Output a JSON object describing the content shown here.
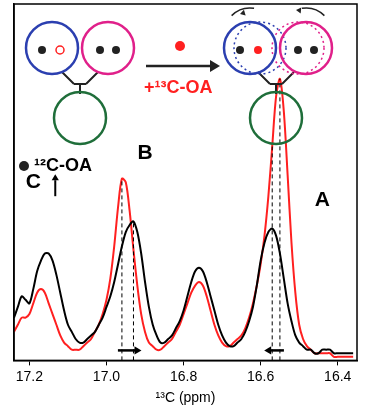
{
  "chart_data": {
    "type": "line",
    "x_label": "¹³C (ppm)",
    "x": [
      17.24,
      17.23,
      17.22,
      17.21,
      17.2,
      17.19,
      17.18,
      17.17,
      17.16,
      17.15,
      17.14,
      17.13,
      17.12,
      17.11,
      17.1,
      17.09,
      17.08,
      17.07,
      17.06,
      17.05,
      17.04,
      17.03,
      17.02,
      17.01,
      17,
      16.99,
      16.98,
      16.97,
      16.96,
      16.95,
      16.94,
      16.93,
      16.92,
      16.91,
      16.9,
      16.89,
      16.88,
      16.87,
      16.86,
      16.85,
      16.84,
      16.83,
      16.82,
      16.81,
      16.8,
      16.79,
      16.78,
      16.77,
      16.76,
      16.75,
      16.74,
      16.73,
      16.72,
      16.71,
      16.7,
      16.69,
      16.68,
      16.67,
      16.66,
      16.65,
      16.64,
      16.63,
      16.62,
      16.61,
      16.6,
      16.59,
      16.58,
      16.57,
      16.56,
      16.55,
      16.54,
      16.53,
      16.52,
      16.51,
      16.5,
      16.49,
      16.48,
      16.47,
      16.46,
      16.45,
      16.44,
      16.43,
      16.42,
      16.41,
      16.4,
      16.39,
      16.38,
      16.37,
      16.36
    ],
    "series": [
      {
        "name": "¹²C-OA",
        "color": "#000000",
        "values": [
          0.12,
          0.15,
          0.18,
          0.17,
          0.16,
          0.2,
          0.25,
          0.28,
          0.3,
          0.3,
          0.28,
          0.24,
          0.19,
          0.14,
          0.1,
          0.08,
          0.06,
          0.05,
          0.05,
          0.06,
          0.07,
          0.08,
          0.1,
          0.12,
          0.15,
          0.18,
          0.22,
          0.27,
          0.32,
          0.36,
          0.38,
          0.39,
          0.36,
          0.3,
          0.22,
          0.15,
          0.1,
          0.07,
          0.05,
          0.05,
          0.06,
          0.07,
          0.09,
          0.11,
          0.14,
          0.18,
          0.22,
          0.25,
          0.26,
          0.25,
          0.22,
          0.18,
          0.14,
          0.1,
          0.07,
          0.05,
          0.04,
          0.04,
          0.05,
          0.06,
          0.08,
          0.11,
          0.15,
          0.21,
          0.28,
          0.33,
          0.36,
          0.37,
          0.35,
          0.3,
          0.23,
          0.16,
          0.11,
          0.07,
          0.05,
          0.04,
          0.03,
          0.03,
          0.02,
          0.02,
          0.03,
          0.03,
          0.03,
          0.02,
          0.02,
          0.02,
          0.02,
          0.02,
          0.02
        ]
      },
      {
        "name": "+¹³C-OA",
        "color": "#ff2020",
        "values": [
          0.08,
          0.1,
          0.12,
          0.12,
          0.13,
          0.16,
          0.19,
          0.2,
          0.19,
          0.16,
          0.13,
          0.1,
          0.07,
          0.05,
          0.04,
          0.03,
          0.03,
          0.03,
          0.04,
          0.05,
          0.06,
          0.08,
          0.1,
          0.13,
          0.17,
          0.23,
          0.32,
          0.43,
          0.51,
          0.5,
          0.42,
          0.31,
          0.21,
          0.13,
          0.08,
          0.05,
          0.04,
          0.03,
          0.03,
          0.04,
          0.05,
          0.06,
          0.08,
          0.1,
          0.13,
          0.16,
          0.19,
          0.21,
          0.22,
          0.21,
          0.18,
          0.14,
          0.1,
          0.07,
          0.05,
          0.04,
          0.04,
          0.05,
          0.06,
          0.07,
          0.09,
          0.12,
          0.16,
          0.21,
          0.27,
          0.35,
          0.46,
          0.6,
          0.74,
          0.79,
          0.7,
          0.52,
          0.33,
          0.19,
          0.1,
          0.06,
          0.04,
          0.03,
          0.02,
          0.02,
          0.02,
          0.02,
          0.02,
          0.01,
          0.01,
          0.01,
          0.01,
          0.01,
          0.01
        ]
      }
    ],
    "xlim": [
      17.24,
      16.35
    ],
    "xticks": [
      17.2,
      {
        "value": 17,
        "label": "17.0"
      },
      16.8,
      16.6,
      16.4
    ],
    "ylim": [
      0,
      1
    ],
    "tick_labels": "x",
    "grid": false,
    "annotations": [
      {
        "text": "A",
        "x": 16.44,
        "y": 0.45
      },
      {
        "text": "B",
        "x": 16.9,
        "y": 0.58
      },
      {
        "text": "C",
        "x": 17.19,
        "y": 0.5,
        "arrow": "up"
      }
    ],
    "shifts": [
      {
        "from": 16.96,
        "to": 16.93
      },
      {
        "from": 16.55,
        "to": 16.57
      }
    ]
  }
}
